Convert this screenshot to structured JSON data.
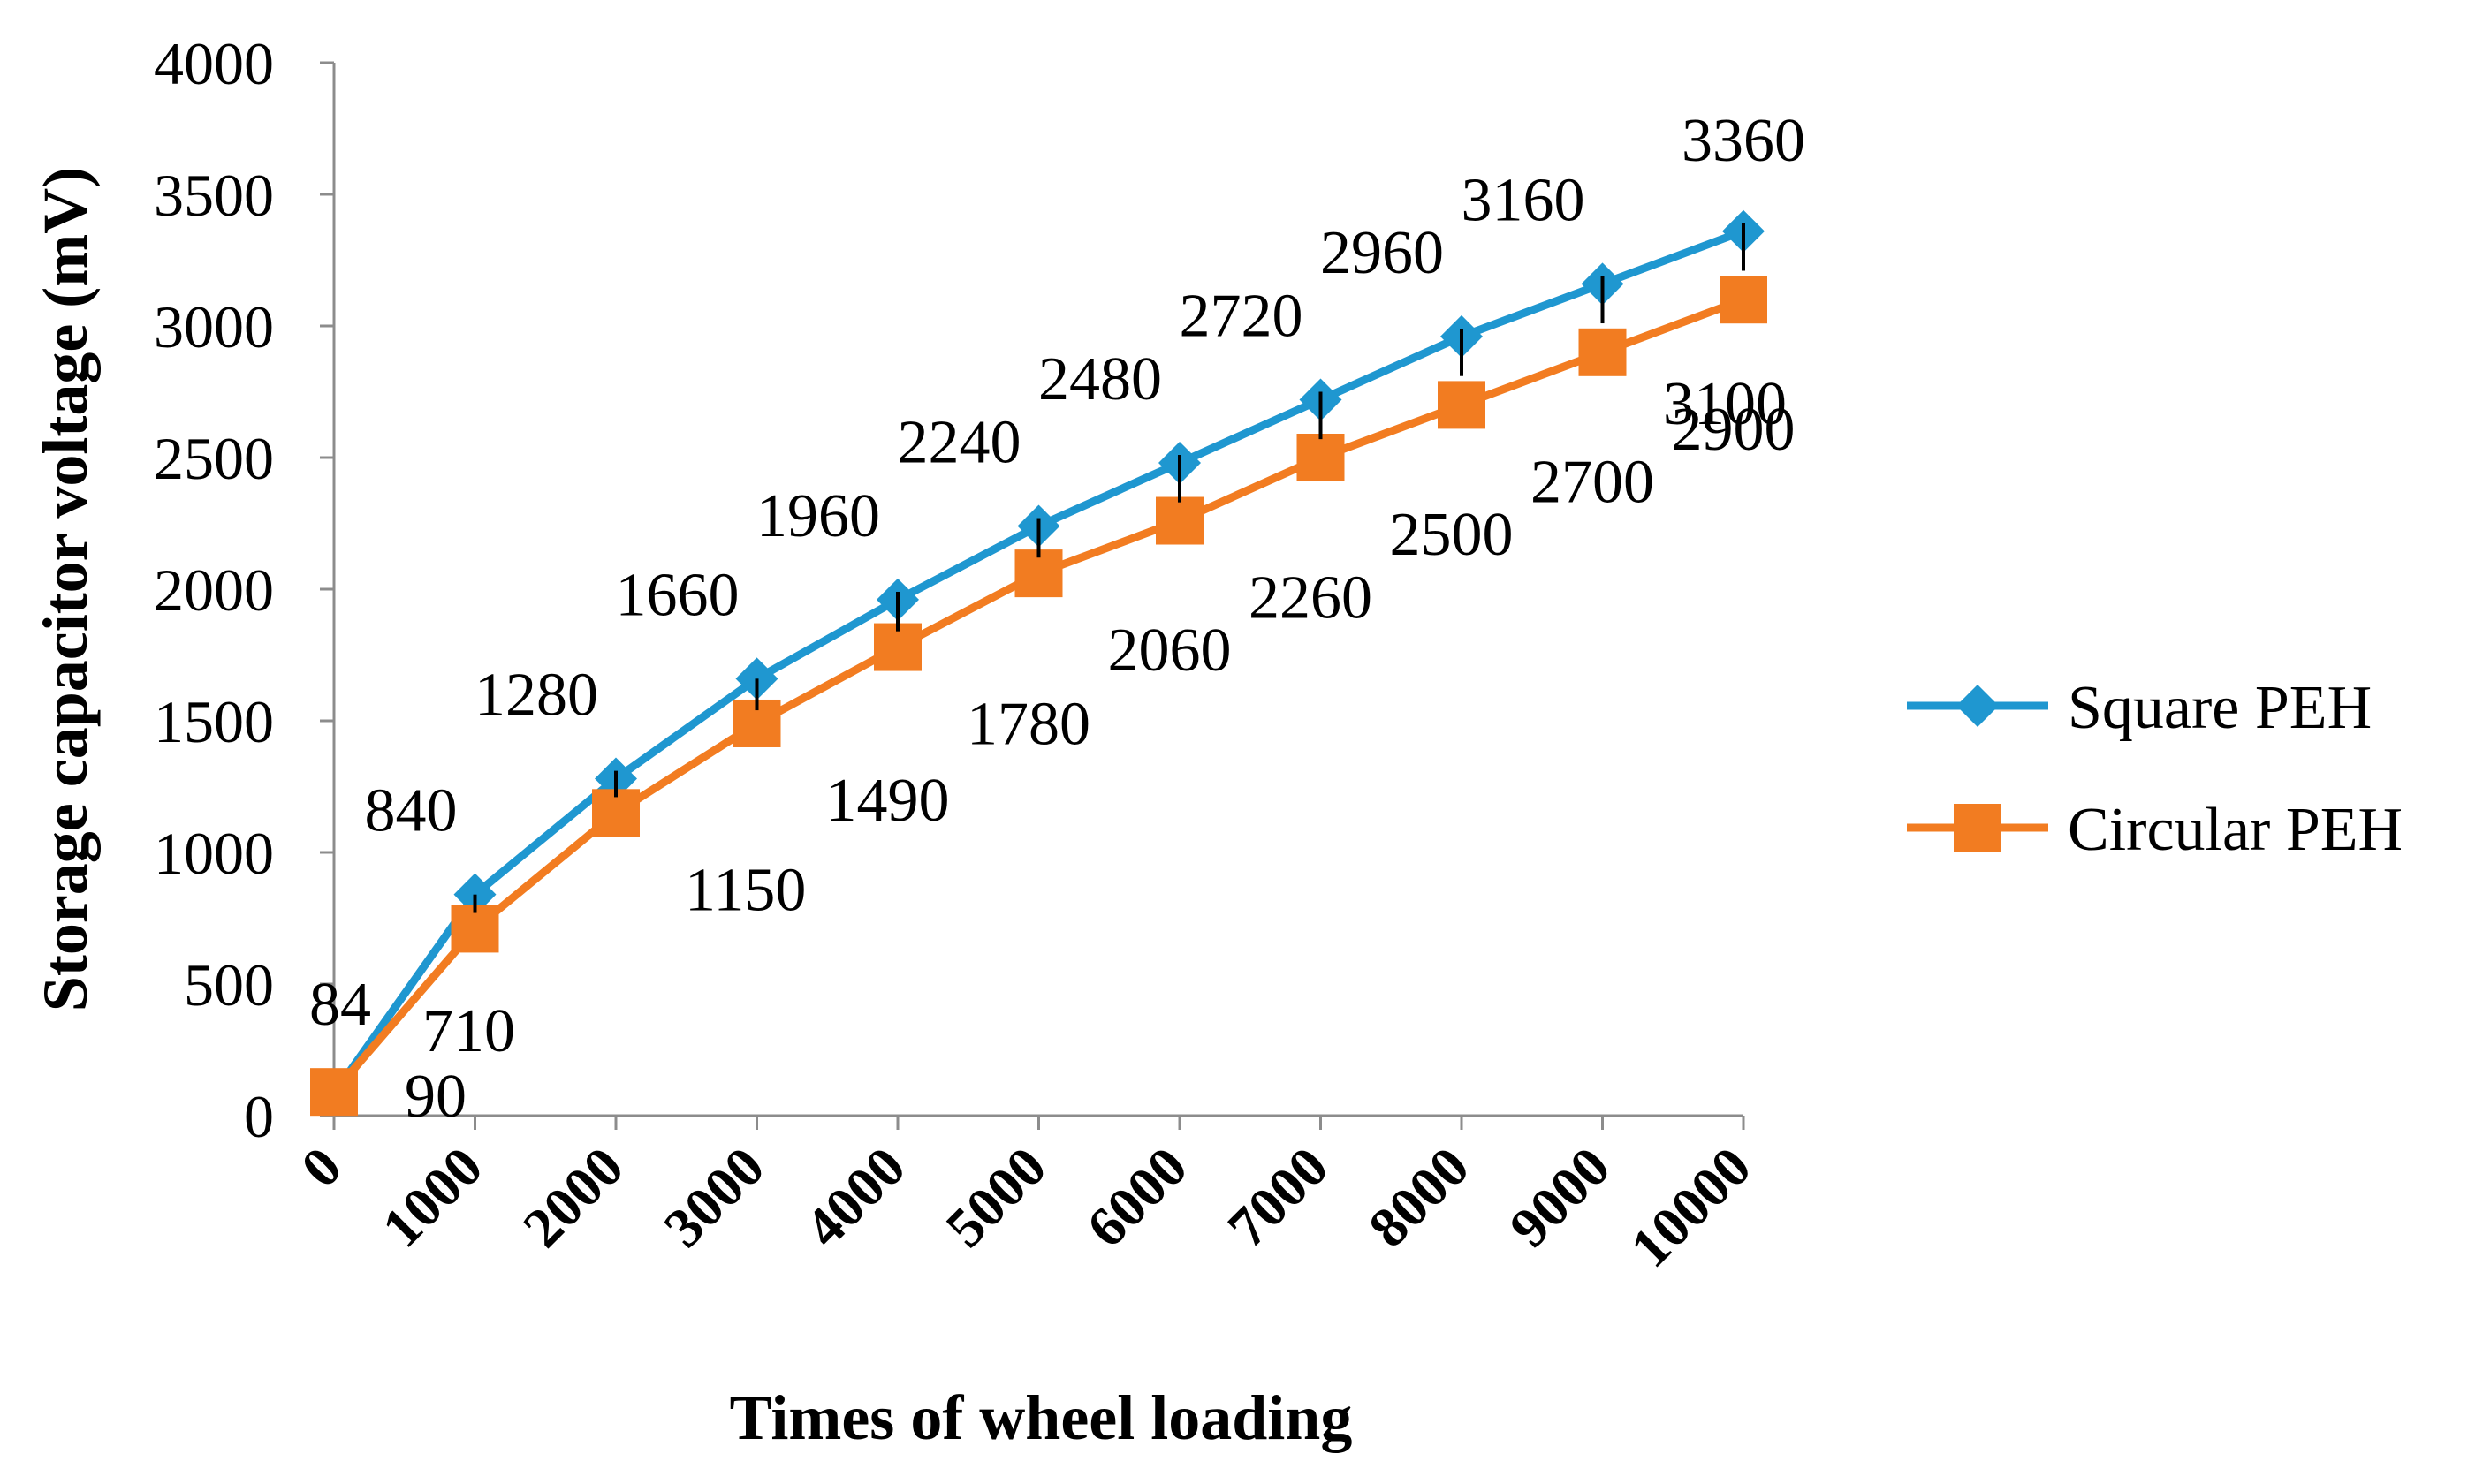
{
  "chart_data": {
    "type": "line",
    "title": "",
    "xlabel": "Times of wheel loading",
    "ylabel": "Storage capacitor voltage (mV)",
    "x": [
      "0",
      "1000",
      "2000",
      "3000",
      "4000",
      "5000",
      "6000",
      "7000",
      "8000",
      "9000",
      "10000"
    ],
    "ylim": [
      0,
      4000
    ],
    "yticks": [
      0,
      500,
      1000,
      1500,
      2000,
      2500,
      3000,
      3500,
      4000
    ],
    "grid": false,
    "legend_position": "right",
    "series": [
      {
        "name": "Square PEH",
        "color": "#1F97D0",
        "marker": "diamond",
        "values": [
          84,
          840,
          1280,
          1660,
          1960,
          2240,
          2480,
          2720,
          2960,
          3160,
          3360
        ],
        "labels": [
          "84",
          "840",
          "1280",
          "1660",
          "1960",
          "2240",
          "2480",
          "2720",
          "2960",
          "3160",
          "3360"
        ],
        "error_low": [
          0,
          70,
          70,
          120,
          120,
          120,
          150,
          150,
          150,
          150,
          150
        ],
        "error_high": [
          0,
          0,
          30,
          0,
          30,
          30,
          30,
          30,
          30,
          30,
          30
        ]
      },
      {
        "name": "Circular PEH",
        "color": "#F27C21",
        "marker": "square",
        "values": [
          90,
          710,
          1150,
          1490,
          1780,
          2060,
          2260,
          2500,
          2700,
          2900,
          3100
        ],
        "labels": [
          "90",
          "710",
          "1150",
          "1490",
          "1780",
          "2060",
          "2260",
          "2500",
          "2700",
          "2900",
          "3100"
        ],
        "error_low": [
          0,
          0,
          0,
          0,
          0,
          0,
          0,
          0,
          0,
          0,
          0
        ],
        "error_high": [
          0,
          0,
          0,
          0,
          0,
          0,
          0,
          0,
          0,
          0,
          0
        ]
      }
    ]
  }
}
